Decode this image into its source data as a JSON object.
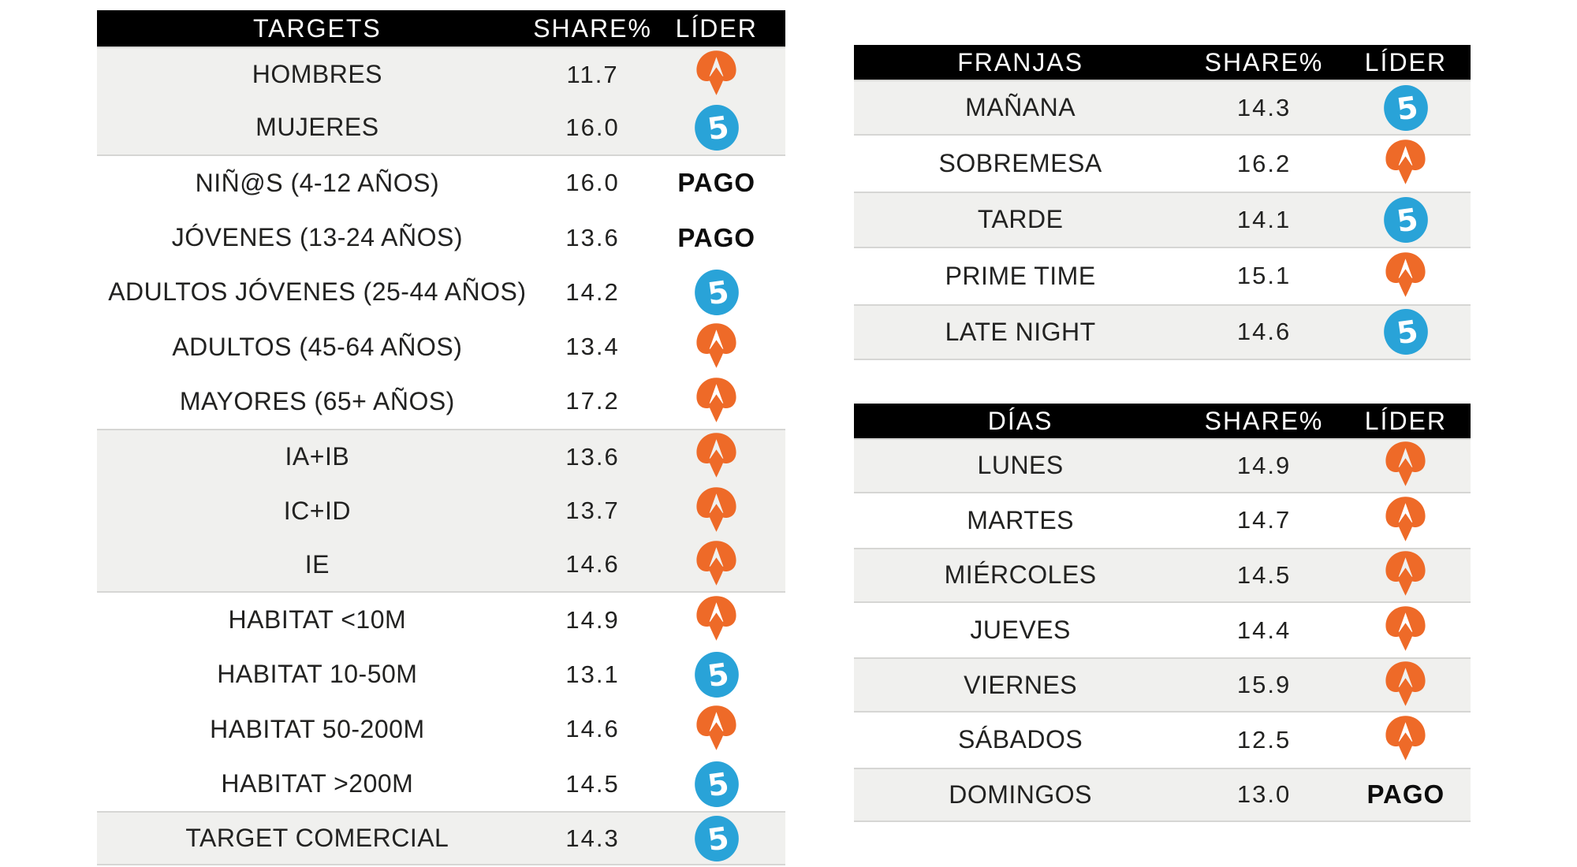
{
  "brand": {
    "antena3_orange": "#EE6A28",
    "telecinco_blue": "#29A3D8",
    "header_bg": "#000000",
    "header_text": "#FFFFFF",
    "shaded_row_bg": "#F0F0EE",
    "separator_line": "#D6D6D4"
  },
  "leader_labels": {
    "pago": "PAGO",
    "a3_icon_name": "antena3-logo",
    "t5_icon_name": "telecinco-logo"
  },
  "tables": [
    {
      "id": "targets",
      "columns": [
        "TARGETS",
        "SHARE%",
        "LÍDER"
      ],
      "rows": [
        {
          "label": "HOMBRES",
          "share": "11.7",
          "leader": "a3",
          "shade": true
        },
        {
          "label": "MUJERES",
          "share": "16.0",
          "leader": "t5",
          "shade": true
        },
        {
          "label": "NIÑ@S (4-12 AÑOS)",
          "share": "16.0",
          "leader": "pago",
          "shade": false
        },
        {
          "label": "JÓVENES (13-24 AÑOS)",
          "share": "13.6",
          "leader": "pago",
          "shade": false
        },
        {
          "label": "ADULTOS JÓVENES (25-44 AÑOS)",
          "share": "14.2",
          "leader": "t5",
          "shade": false
        },
        {
          "label": "ADULTOS (45-64 AÑOS)",
          "share": "13.4",
          "leader": "a3",
          "shade": false
        },
        {
          "label": "MAYORES (65+ AÑOS)",
          "share": "17.2",
          "leader": "a3",
          "shade": false
        },
        {
          "label": "IA+IB",
          "share": "13.6",
          "leader": "a3",
          "shade": true
        },
        {
          "label": "IC+ID",
          "share": "13.7",
          "leader": "a3",
          "shade": true
        },
        {
          "label": "IE",
          "share": "14.6",
          "leader": "a3",
          "shade": true
        },
        {
          "label": "HABITAT <10M",
          "share": "14.9",
          "leader": "a3",
          "shade": false
        },
        {
          "label": "HABITAT 10-50M",
          "share": "13.1",
          "leader": "t5",
          "shade": false
        },
        {
          "label": "HABITAT 50-200M",
          "share": "14.6",
          "leader": "a3",
          "shade": false
        },
        {
          "label": "HABITAT >200M",
          "share": "14.5",
          "leader": "t5",
          "shade": false
        },
        {
          "label": "TARGET COMERCIAL",
          "share": "14.3",
          "leader": "t5",
          "shade": true
        }
      ]
    },
    {
      "id": "franjas",
      "columns": [
        "FRANJAS",
        "SHARE%",
        "LÍDER"
      ],
      "rows": [
        {
          "label": "MAÑANA",
          "share": "14.3",
          "leader": "t5",
          "shade": true
        },
        {
          "label": "SOBREMESA",
          "share": "16.2",
          "leader": "a3",
          "shade": false
        },
        {
          "label": "TARDE",
          "share": "14.1",
          "leader": "t5",
          "shade": true
        },
        {
          "label": "PRIME TIME",
          "share": "15.1",
          "leader": "a3",
          "shade": false
        },
        {
          "label": "LATE NIGHT",
          "share": "14.6",
          "leader": "t5",
          "shade": true
        }
      ]
    },
    {
      "id": "dias",
      "columns": [
        "DÍAS",
        "SHARE%",
        "LÍDER"
      ],
      "rows": [
        {
          "label": "LUNES",
          "share": "14.9",
          "leader": "a3",
          "shade": true
        },
        {
          "label": "MARTES",
          "share": "14.7",
          "leader": "a3",
          "shade": false
        },
        {
          "label": "MIÉRCOLES",
          "share": "14.5",
          "leader": "a3",
          "shade": true
        },
        {
          "label": "JUEVES",
          "share": "14.4",
          "leader": "a3",
          "shade": false
        },
        {
          "label": "VIERNES",
          "share": "15.9",
          "leader": "a3",
          "shade": true
        },
        {
          "label": "SÁBADOS",
          "share": "12.5",
          "leader": "a3",
          "shade": false
        },
        {
          "label": "DOMINGOS",
          "share": "13.0",
          "leader": "pago",
          "shade": true
        }
      ]
    }
  ],
  "chart_data": [
    {
      "type": "table",
      "title": "TARGETS",
      "columns": [
        "TARGETS",
        "SHARE%",
        "LÍDER"
      ],
      "rows": [
        [
          "HOMBRES",
          11.7,
          "ANTENA 3"
        ],
        [
          "MUJERES",
          16.0,
          "TELECINCO"
        ],
        [
          "NIÑ@S (4-12 AÑOS)",
          16.0,
          "PAGO"
        ],
        [
          "JÓVENES (13-24 AÑOS)",
          13.6,
          "PAGO"
        ],
        [
          "ADULTOS JÓVENES (25-44 AÑOS)",
          14.2,
          "TELECINCO"
        ],
        [
          "ADULTOS (45-64 AÑOS)",
          13.4,
          "ANTENA 3"
        ],
        [
          "MAYORES (65+ AÑOS)",
          17.2,
          "ANTENA 3"
        ],
        [
          "IA+IB",
          13.6,
          "ANTENA 3"
        ],
        [
          "IC+ID",
          13.7,
          "ANTENA 3"
        ],
        [
          "IE",
          14.6,
          "ANTENA 3"
        ],
        [
          "HABITAT <10M",
          14.9,
          "ANTENA 3"
        ],
        [
          "HABITAT 10-50M",
          13.1,
          "TELECINCO"
        ],
        [
          "HABITAT 50-200M",
          14.6,
          "ANTENA 3"
        ],
        [
          "HABITAT >200M",
          14.5,
          "TELECINCO"
        ],
        [
          "TARGET COMERCIAL",
          14.3,
          "TELECINCO"
        ]
      ]
    },
    {
      "type": "table",
      "title": "FRANJAS",
      "columns": [
        "FRANJAS",
        "SHARE%",
        "LÍDER"
      ],
      "rows": [
        [
          "MAÑANA",
          14.3,
          "TELECINCO"
        ],
        [
          "SOBREMESA",
          16.2,
          "ANTENA 3"
        ],
        [
          "TARDE",
          14.1,
          "TELECINCO"
        ],
        [
          "PRIME TIME",
          15.1,
          "ANTENA 3"
        ],
        [
          "LATE NIGHT",
          14.6,
          "TELECINCO"
        ]
      ]
    },
    {
      "type": "table",
      "title": "DÍAS",
      "columns": [
        "DÍAS",
        "SHARE%",
        "LÍDER"
      ],
      "rows": [
        [
          "LUNES",
          14.9,
          "ANTENA 3"
        ],
        [
          "MARTES",
          14.7,
          "ANTENA 3"
        ],
        [
          "MIÉRCOLES",
          14.5,
          "ANTENA 3"
        ],
        [
          "JUEVES",
          14.4,
          "ANTENA 3"
        ],
        [
          "VIERNES",
          15.9,
          "ANTENA 3"
        ],
        [
          "SÁBADOS",
          12.5,
          "ANTENA 3"
        ],
        [
          "DOMINGOS",
          13.0,
          "PAGO"
        ]
      ]
    }
  ]
}
